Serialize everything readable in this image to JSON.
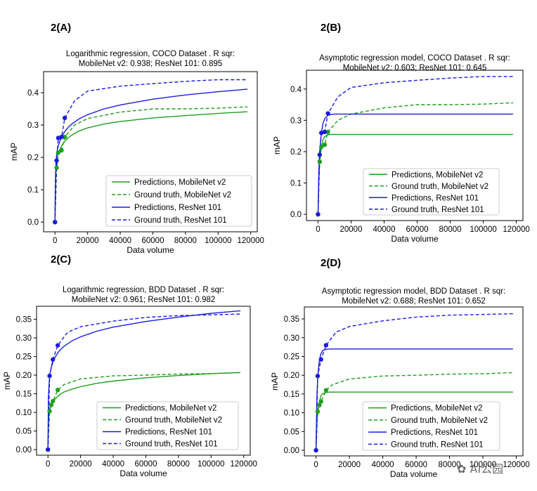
{
  "panel_labels": [
    "2(A)",
    "2(B)",
    "2(C)",
    "2(D)"
  ],
  "watermark": "AI公园",
  "colors": {
    "mobilenet": "#1f9e1f",
    "resnet": "#1c1cdc",
    "axis": "#000000"
  },
  "chart_data": [
    {
      "type": "line",
      "title": "Logarithmic regression, COCO Dataset . R sqr:",
      "subtitle": "MobileNet v2: 0.938; ResNet 101: 0.895",
      "xlabel": "Data volume",
      "ylabel": "mAP",
      "xlim": [
        -7000,
        124000
      ],
      "ylim": [
        -0.03,
        0.465
      ],
      "xticks": [
        0,
        20000,
        40000,
        60000,
        80000,
        100000,
        120000
      ],
      "yticks": [
        0.0,
        0.1,
        0.2,
        0.3,
        0.4
      ],
      "ytick_labels": [
        "0.0",
        "0.1",
        "0.2",
        "0.3",
        "0.4"
      ],
      "grid": false,
      "legend_position": "lower-right",
      "series": [
        {
          "name": "Predictions, MobileNet v2",
          "color": "mobilenet",
          "style": "solid",
          "x": [
            0,
            300,
            700,
            1000,
            1500,
            2000,
            3000,
            4000,
            6000,
            8000,
            10000,
            15000,
            20000,
            30000,
            40000,
            60000,
            80000,
            100000,
            118000
          ],
          "y": [
            0.0,
            0.12,
            0.17,
            0.185,
            0.2,
            0.21,
            0.225,
            0.235,
            0.25,
            0.26,
            0.268,
            0.282,
            0.291,
            0.303,
            0.311,
            0.322,
            0.329,
            0.336,
            0.341
          ]
        },
        {
          "name": "Ground truth, MobileNet v2",
          "color": "mobilenet",
          "style": "dashed",
          "x": [
            0,
            1000,
            2000,
            4000,
            6000,
            12000,
            20000,
            40000,
            60000,
            80000,
            100000,
            118000
          ],
          "y": [
            0.0,
            0.168,
            0.215,
            0.222,
            0.263,
            0.3,
            0.32,
            0.34,
            0.35,
            0.35,
            0.352,
            0.356
          ]
        },
        {
          "name": "Predictions, ResNet 101",
          "color": "resnet",
          "style": "solid",
          "x": [
            0,
            300,
            700,
            1000,
            1500,
            2000,
            3000,
            4000,
            6000,
            8000,
            10000,
            15000,
            20000,
            30000,
            40000,
            60000,
            80000,
            100000,
            118000
          ],
          "y": [
            0.0,
            0.14,
            0.19,
            0.21,
            0.225,
            0.235,
            0.25,
            0.262,
            0.28,
            0.292,
            0.302,
            0.32,
            0.332,
            0.35,
            0.362,
            0.38,
            0.393,
            0.403,
            0.411
          ]
        },
        {
          "name": "Ground truth, ResNet 101",
          "color": "resnet",
          "style": "dashed",
          "x": [
            0,
            1000,
            2000,
            4000,
            6000,
            12000,
            20000,
            40000,
            60000,
            80000,
            100000,
            118000
          ],
          "y": [
            0.0,
            0.19,
            0.26,
            0.263,
            0.322,
            0.375,
            0.405,
            0.42,
            0.428,
            0.435,
            0.44,
            0.44
          ]
        }
      ],
      "markers": [
        {
          "color": "mobilenet",
          "x": [
            0,
            1000,
            2000,
            4000,
            6000
          ],
          "y": [
            0.0,
            0.168,
            0.215,
            0.222,
            0.263
          ]
        },
        {
          "color": "resnet",
          "x": [
            0,
            1000,
            2000,
            4000,
            6000
          ],
          "y": [
            0.0,
            0.19,
            0.26,
            0.263,
            0.322
          ]
        }
      ]
    },
    {
      "type": "line",
      "title": "Asymptotic regression model, COCO Dataset . R sqr:",
      "subtitle": "MobileNet v2: 0.603; ResNet 101: 0.645",
      "xlabel": "Data volume",
      "ylabel": "mAP",
      "xlim": [
        -7000,
        124000
      ],
      "ylim": [
        -0.02,
        0.46
      ],
      "xticks": [
        0,
        20000,
        40000,
        60000,
        80000,
        100000,
        120000
      ],
      "yticks": [
        0.0,
        0.1,
        0.2,
        0.3,
        0.4
      ],
      "ytick_labels": [
        "0.0",
        "0.1",
        "0.2",
        "0.3",
        "0.4"
      ],
      "grid": false,
      "legend_position": "lower-right",
      "series": [
        {
          "name": "Predictions, MobileNet v2",
          "color": "mobilenet",
          "style": "solid",
          "x": [
            0,
            500,
            1000,
            2000,
            3000,
            4000,
            6000,
            8000,
            10000,
            20000,
            60000,
            118000
          ],
          "y": [
            0.0,
            0.11,
            0.165,
            0.215,
            0.238,
            0.248,
            0.254,
            0.255,
            0.255,
            0.255,
            0.255,
            0.255
          ]
        },
        {
          "name": "Ground truth, MobileNet v2",
          "color": "mobilenet",
          "style": "dashed",
          "x": [
            0,
            1000,
            2000,
            4000,
            6000,
            12000,
            20000,
            40000,
            60000,
            80000,
            100000,
            118000
          ],
          "y": [
            0.0,
            0.168,
            0.215,
            0.222,
            0.263,
            0.3,
            0.32,
            0.34,
            0.35,
            0.35,
            0.352,
            0.356
          ]
        },
        {
          "name": "Predictions, ResNet 101",
          "color": "resnet",
          "style": "solid",
          "x": [
            0,
            500,
            1000,
            2000,
            3000,
            4000,
            6000,
            8000,
            10000,
            20000,
            60000,
            118000
          ],
          "y": [
            0.0,
            0.14,
            0.2,
            0.26,
            0.29,
            0.305,
            0.316,
            0.319,
            0.32,
            0.32,
            0.32,
            0.32
          ]
        },
        {
          "name": "Ground truth, ResNet 101",
          "color": "resnet",
          "style": "dashed",
          "x": [
            0,
            1000,
            2000,
            4000,
            6000,
            12000,
            20000,
            40000,
            60000,
            80000,
            100000,
            118000
          ],
          "y": [
            0.0,
            0.19,
            0.26,
            0.263,
            0.322,
            0.375,
            0.405,
            0.42,
            0.428,
            0.435,
            0.44,
            0.44
          ]
        }
      ],
      "markers": [
        {
          "color": "mobilenet",
          "x": [
            0,
            1000,
            2000,
            4000,
            6000
          ],
          "y": [
            0.0,
            0.168,
            0.215,
            0.222,
            0.263
          ]
        },
        {
          "color": "resnet",
          "x": [
            0,
            1000,
            2000,
            4000,
            6000
          ],
          "y": [
            0.0,
            0.19,
            0.26,
            0.263,
            0.322
          ]
        }
      ]
    },
    {
      "type": "line",
      "title": "Logarithmic regression, BDD Dataset . R sqr:",
      "subtitle": "MobileNet v2: 0.961; ResNet 101: 0.982",
      "xlabel": "Data volume",
      "ylabel": "mAP",
      "xlim": [
        -7000,
        124000
      ],
      "ylim": [
        -0.015,
        0.385
      ],
      "xticks": [
        0,
        20000,
        40000,
        60000,
        80000,
        100000,
        120000
      ],
      "yticks": [
        0.0,
        0.05,
        0.1,
        0.15,
        0.2,
        0.25,
        0.3,
        0.35
      ],
      "ytick_labels": [
        "0.00",
        "0.05",
        "0.10",
        "0.15",
        "0.20",
        "0.25",
        "0.30",
        "0.35"
      ],
      "grid": false,
      "legend_position": "lower-right",
      "series": [
        {
          "name": "Predictions, MobileNet v2",
          "color": "mobilenet",
          "style": "solid",
          "x": [
            0,
            300,
            700,
            1000,
            1500,
            2000,
            3000,
            4000,
            6000,
            8000,
            10000,
            15000,
            20000,
            30000,
            40000,
            60000,
            80000,
            100000,
            118000
          ],
          "y": [
            0.0,
            0.07,
            0.095,
            0.105,
            0.113,
            0.12,
            0.128,
            0.134,
            0.143,
            0.15,
            0.155,
            0.163,
            0.169,
            0.178,
            0.184,
            0.193,
            0.199,
            0.204,
            0.207
          ]
        },
        {
          "name": "Ground truth, MobileNet v2",
          "color": "mobilenet",
          "style": "dashed",
          "x": [
            0,
            1000,
            2000,
            3000,
            6000,
            10000,
            20000,
            40000,
            60000,
            80000,
            100000,
            118000
          ],
          "y": [
            0.0,
            0.103,
            0.12,
            0.13,
            0.16,
            0.175,
            0.19,
            0.198,
            0.2,
            0.203,
            0.204,
            0.207
          ]
        },
        {
          "name": "Predictions, ResNet 101",
          "color": "resnet",
          "style": "solid",
          "x": [
            0,
            300,
            700,
            1000,
            1500,
            2000,
            3000,
            4000,
            6000,
            8000,
            10000,
            15000,
            20000,
            30000,
            40000,
            60000,
            80000,
            100000,
            118000
          ],
          "y": [
            0.0,
            0.14,
            0.18,
            0.196,
            0.21,
            0.22,
            0.235,
            0.245,
            0.26,
            0.27,
            0.278,
            0.293,
            0.303,
            0.318,
            0.329,
            0.344,
            0.356,
            0.366,
            0.373
          ]
        },
        {
          "name": "Ground truth, ResNet 101",
          "color": "resnet",
          "style": "dashed",
          "x": [
            0,
            1000,
            3000,
            6000,
            12000,
            20000,
            40000,
            60000,
            80000,
            100000,
            118000
          ],
          "y": [
            0.0,
            0.198,
            0.242,
            0.28,
            0.315,
            0.33,
            0.345,
            0.355,
            0.36,
            0.362,
            0.364
          ]
        }
      ],
      "markers": [
        {
          "color": "mobilenet",
          "x": [
            0,
            1000,
            2000,
            3000,
            6000
          ],
          "y": [
            0.0,
            0.103,
            0.12,
            0.13,
            0.16
          ]
        },
        {
          "color": "resnet",
          "x": [
            0,
            1000,
            3000,
            6000
          ],
          "y": [
            0.0,
            0.198,
            0.242,
            0.28
          ]
        }
      ]
    },
    {
      "type": "line",
      "title": "Asymptotic regression model, BDD Dataset . R sqr:",
      "subtitle": "MobileNet v2: 0.688; ResNet 101: 0.652",
      "xlabel": "Data volume",
      "ylabel": "mAP",
      "xlim": [
        -7000,
        124000
      ],
      "ylim": [
        -0.015,
        0.382
      ],
      "xticks": [
        0,
        20000,
        40000,
        60000,
        80000,
        100000,
        120000
      ],
      "yticks": [
        0.0,
        0.05,
        0.1,
        0.15,
        0.2,
        0.25,
        0.3,
        0.35
      ],
      "ytick_labels": [
        "0.00",
        "0.05",
        "0.10",
        "0.15",
        "0.20",
        "0.25",
        "0.30",
        "0.35"
      ],
      "grid": false,
      "legend_position": "lower-right",
      "series": [
        {
          "name": "Predictions, MobileNet v2",
          "color": "mobilenet",
          "style": "solid",
          "x": [
            0,
            500,
            1000,
            2000,
            3000,
            4000,
            6000,
            8000,
            10000,
            20000,
            60000,
            118000
          ],
          "y": [
            0.0,
            0.07,
            0.1,
            0.13,
            0.145,
            0.151,
            0.154,
            0.155,
            0.155,
            0.155,
            0.155,
            0.155
          ]
        },
        {
          "name": "Ground truth, MobileNet v2",
          "color": "mobilenet",
          "style": "dashed",
          "x": [
            0,
            1000,
            2000,
            3000,
            6000,
            10000,
            20000,
            40000,
            60000,
            80000,
            100000,
            118000
          ],
          "y": [
            0.0,
            0.103,
            0.12,
            0.13,
            0.16,
            0.175,
            0.19,
            0.198,
            0.2,
            0.203,
            0.204,
            0.207
          ]
        },
        {
          "name": "Predictions, ResNet 101",
          "color": "resnet",
          "style": "solid",
          "x": [
            0,
            500,
            1000,
            2000,
            3000,
            4000,
            6000,
            8000,
            10000,
            20000,
            60000,
            118000
          ],
          "y": [
            0.0,
            0.14,
            0.195,
            0.24,
            0.258,
            0.266,
            0.269,
            0.27,
            0.27,
            0.27,
            0.27,
            0.27
          ]
        },
        {
          "name": "Ground truth, ResNet 101",
          "color": "resnet",
          "style": "dashed",
          "x": [
            0,
            1000,
            3000,
            6000,
            12000,
            20000,
            40000,
            60000,
            80000,
            100000,
            118000
          ],
          "y": [
            0.0,
            0.198,
            0.242,
            0.28,
            0.315,
            0.33,
            0.345,
            0.355,
            0.36,
            0.362,
            0.364
          ]
        }
      ],
      "markers": [
        {
          "color": "mobilenet",
          "x": [
            0,
            1000,
            2000,
            3000,
            6000
          ],
          "y": [
            0.0,
            0.103,
            0.12,
            0.13,
            0.16
          ]
        },
        {
          "color": "resnet",
          "x": [
            0,
            1000,
            3000,
            6000
          ],
          "y": [
            0.0,
            0.198,
            0.242,
            0.28
          ]
        }
      ]
    }
  ]
}
